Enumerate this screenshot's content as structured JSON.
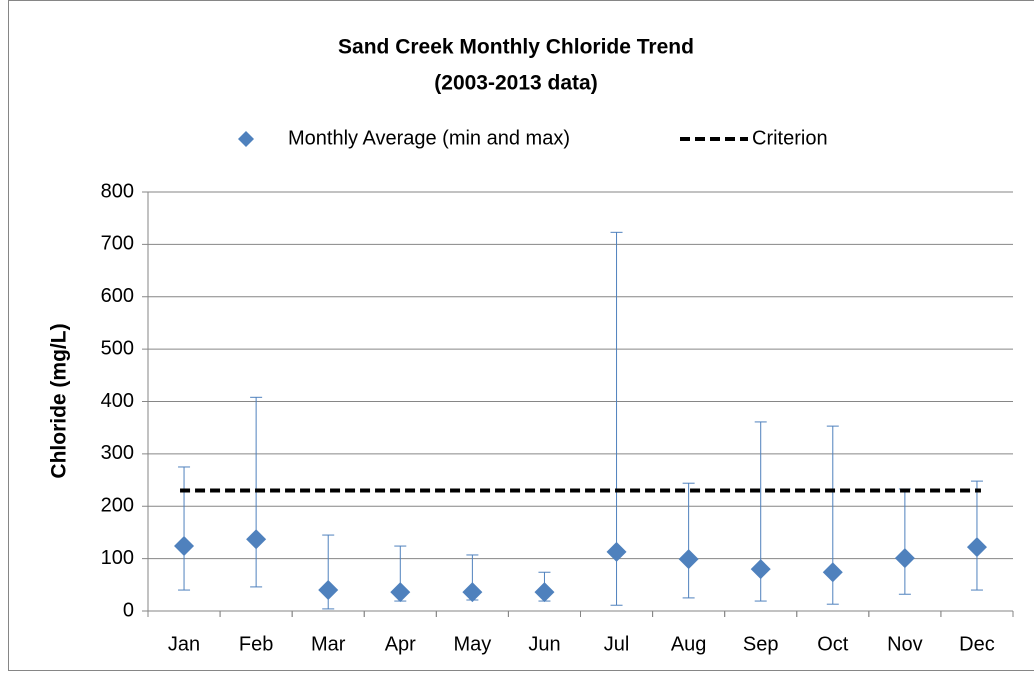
{
  "chart_data": {
    "type": "scatter",
    "title": "Sand Creek Monthly Chloride Trend",
    "subtitle": "(2003-2013 data)",
    "y_label": "Chloride (mg/L)",
    "categories": [
      "Jan",
      "Feb",
      "Mar",
      "Apr",
      "May",
      "Jun",
      "Jul",
      "Aug",
      "Sep",
      "Oct",
      "Nov",
      "Dec"
    ],
    "series": [
      {
        "name": "Monthly Average (min and max)",
        "color": "#4f81bd",
        "values": [
          124,
          137,
          40,
          36,
          36,
          36,
          113,
          99,
          80,
          74,
          101,
          122
        ],
        "min": [
          40,
          46,
          4,
          19,
          21,
          19,
          11,
          25,
          19,
          13,
          32,
          40
        ],
        "max": [
          275,
          408,
          145,
          124,
          107,
          74,
          723,
          244,
          361,
          353,
          233,
          248
        ]
      },
      {
        "name": "Criterion",
        "color": "#000000",
        "value": 230
      }
    ],
    "ylim": [
      0,
      800
    ],
    "yticks": [
      0,
      100,
      200,
      300,
      400,
      500,
      600,
      700,
      800
    ],
    "grid": true,
    "legend": "top"
  }
}
